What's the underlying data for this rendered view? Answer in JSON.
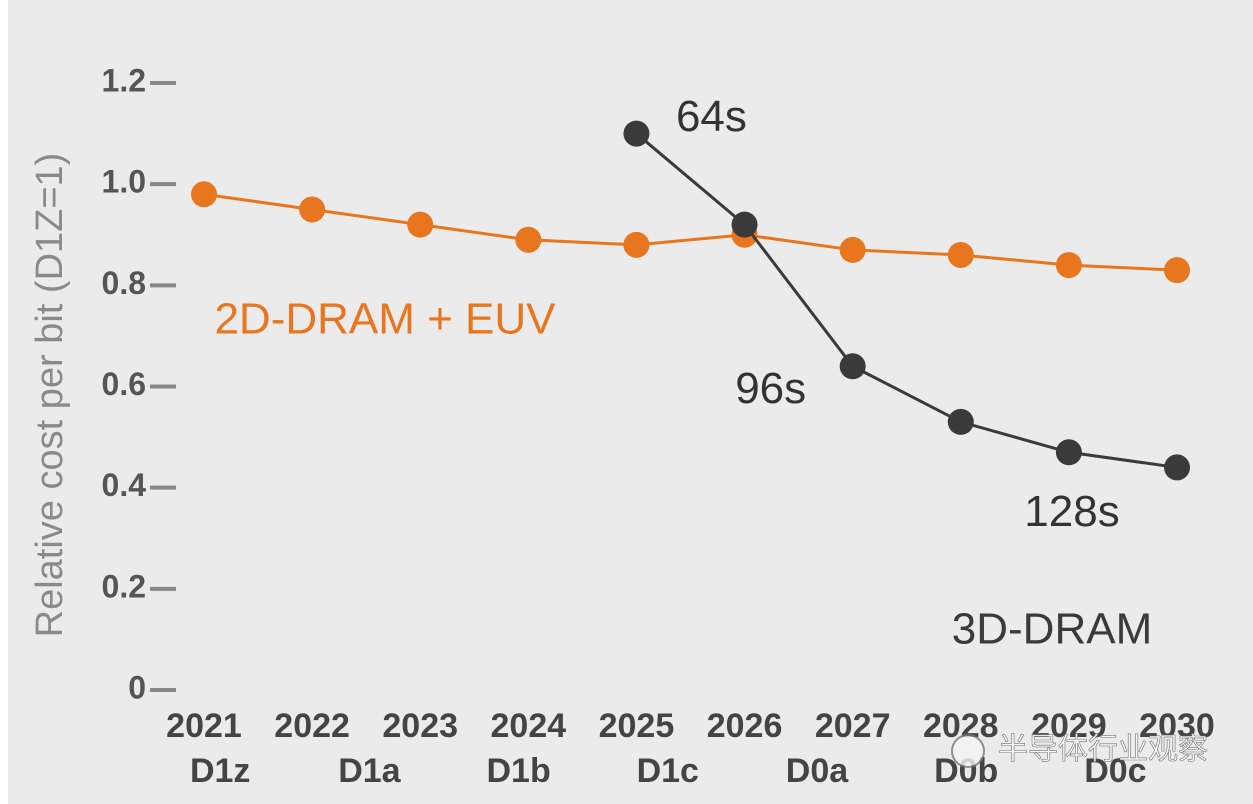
{
  "chart_data": {
    "type": "line",
    "y_axis_label": "Relative cost per bit (D1Z=1)",
    "categories": [
      "2021",
      "2022",
      "2023",
      "2024",
      "2025",
      "2026",
      "2027",
      "2028",
      "2029",
      "2030"
    ],
    "subcategories": [
      "D1z",
      "D1a",
      "D1b",
      "D1c",
      "D0a",
      "D0b",
      "D0c"
    ],
    "subcategory_positions_note_free": null,
    "series": [
      {
        "name": "2D-DRAM + EUV",
        "color": "#e8761e",
        "values": [
          0.98,
          0.95,
          0.92,
          0.89,
          0.88,
          0.9,
          0.87,
          0.86,
          0.84,
          0.83
        ]
      },
      {
        "name": "3D-DRAM",
        "color": "#3a3a3a",
        "values": [
          null,
          null,
          null,
          null,
          1.1,
          0.92,
          0.64,
          0.53,
          0.47,
          0.44
        ]
      }
    ],
    "annotations": [
      {
        "text": "64s",
        "series": 1,
        "index": 4
      },
      {
        "text": "96s",
        "series": 1,
        "index": 6
      },
      {
        "text": "128s",
        "series": 1,
        "index": 9
      }
    ],
    "watermark": "半导体行业观察",
    "ylim": [
      0,
      1.2
    ],
    "yticks": [
      0,
      0.2,
      0.4,
      0.6,
      {
        "value": 1,
        "label": "1.0"
      },
      0.8,
      1.2
    ]
  }
}
